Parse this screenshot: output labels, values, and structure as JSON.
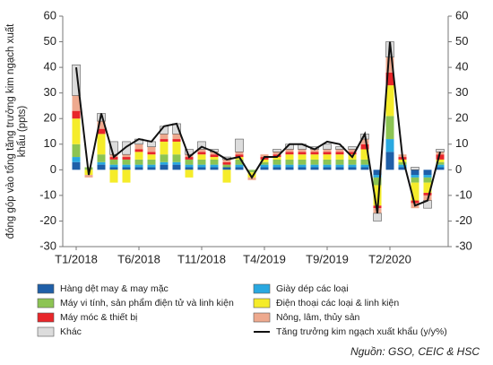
{
  "chart_data": {
    "type": "bar",
    "y_label_lines": [
      "đóng góp vào tổng tăng trưởng kim ngạch xuất",
      "khẩu (ppts)"
    ],
    "source": "Nguồn: GSO, CEIC & HSC",
    "categories": [
      "T1/2018",
      null,
      null,
      null,
      null,
      "T6/2018",
      null,
      null,
      null,
      null,
      "T11/2018",
      null,
      null,
      null,
      null,
      "T4/2019",
      null,
      null,
      null,
      null,
      "T9/2019",
      null,
      null,
      null,
      null,
      "T2/2020",
      null,
      null,
      null,
      null
    ],
    "ylim": [
      -30,
      60
    ],
    "yticks": [
      -30,
      -20,
      -10,
      0,
      10,
      20,
      30,
      40,
      50,
      60
    ],
    "y2lim": [
      -30,
      60
    ],
    "y2ticks": [
      -30,
      -20,
      -10,
      0,
      10,
      20,
      30,
      40,
      50,
      60
    ],
    "stacked": true,
    "series": [
      {
        "name": "Hàng dệt may & may mặc",
        "color": "#1f5fa8",
        "values": [
          3,
          0,
          2,
          1,
          1,
          1,
          1,
          2,
          2,
          1,
          1,
          1,
          1,
          1,
          0,
          1,
          1,
          1,
          1,
          1,
          1,
          1,
          1,
          1,
          -2,
          7,
          1,
          -2,
          -2,
          1
        ]
      },
      {
        "name": "Giày dép các loại",
        "color": "#29a8e0",
        "values": [
          2,
          0,
          1,
          1,
          1,
          1,
          1,
          1,
          1,
          1,
          1,
          1,
          0,
          1,
          0,
          1,
          1,
          1,
          1,
          1,
          1,
          1,
          1,
          1,
          -1,
          5,
          1,
          -1,
          -1,
          1
        ]
      },
      {
        "name": "Máy vi tính, sản phẩm điện tử và linh kiện",
        "color": "#8cc453",
        "values": [
          5,
          1,
          3,
          2,
          2,
          2,
          2,
          3,
          3,
          2,
          2,
          2,
          1,
          2,
          -1,
          1,
          2,
          2,
          2,
          2,
          2,
          2,
          2,
          2,
          -3,
          9,
          1,
          -2,
          -2,
          1
        ]
      },
      {
        "name": "Điện thoại các loại & linh kiện",
        "color": "#f5ec2a",
        "values": [
          10,
          -2,
          8,
          -5,
          -5,
          3,
          2,
          5,
          5,
          -3,
          2,
          1,
          -5,
          1,
          -2,
          1,
          1,
          2,
          2,
          2,
          2,
          2,
          2,
          4,
          -8,
          12,
          1,
          -7,
          -4,
          1
        ]
      },
      {
        "name": "Máy móc & thiết bị",
        "color": "#e8262a",
        "values": [
          3,
          0,
          2,
          1,
          1,
          1,
          1,
          1,
          1,
          1,
          1,
          1,
          1,
          1,
          0,
          1,
          1,
          1,
          1,
          1,
          1,
          1,
          1,
          2,
          -1,
          5,
          1,
          -1,
          -1,
          2
        ]
      },
      {
        "name": "Nông, lâm, thủy sản",
        "color": "#eea98e",
        "values": [
          6,
          -1,
          3,
          1,
          1,
          2,
          2,
          2,
          2,
          1,
          1,
          1,
          1,
          1,
          -1,
          1,
          1,
          1,
          1,
          1,
          1,
          1,
          1,
          2,
          -2,
          6,
          1,
          -2,
          -2,
          1
        ]
      },
      {
        "name": "Khác",
        "color": "#dcdcdc",
        "values": [
          12,
          0,
          3,
          5,
          5,
          2,
          2,
          3,
          4,
          2,
          3,
          1,
          1,
          5,
          0,
          0,
          1,
          2,
          2,
          1,
          2,
          1,
          1,
          2,
          -3,
          6,
          0,
          1,
          -3,
          1
        ]
      },
      {
        "name": "Tăng trưởng kim ngạch xuất khẩu (y/y%)",
        "type": "line",
        "color": "#111111",
        "values": [
          40,
          -2,
          22,
          5,
          9,
          12,
          11,
          17,
          18,
          5,
          9,
          7,
          4,
          5,
          -3,
          5,
          5,
          10,
          10,
          8,
          11,
          10,
          5,
          14,
          -17,
          50,
          5,
          -14,
          -12,
          7
        ]
      }
    ]
  }
}
